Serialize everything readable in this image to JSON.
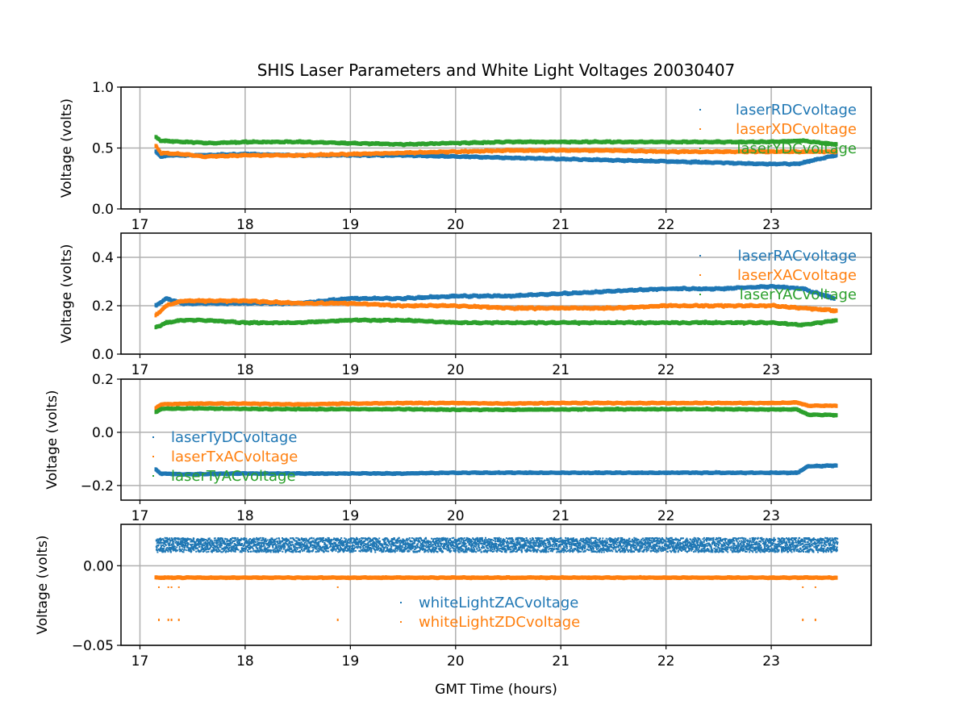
{
  "chart_data": {
    "type": "scatter",
    "title": "SHIS Laser Parameters and White Light Voltages 20030407",
    "xlabel": "GMT Time (hours)",
    "xlim": [
      16.82,
      23.95
    ],
    "x_ticks": [
      17,
      18,
      19,
      20,
      21,
      22,
      23
    ],
    "x_tick_labels": [
      "17",
      "18",
      "19",
      "20",
      "21",
      "22",
      "23"
    ],
    "grid": true,
    "panels": [
      {
        "ylabel": "Voltage (volts)",
        "ylim": [
          0,
          1.0
        ],
        "y_ticks": [
          0,
          0.5,
          1.0
        ],
        "y_tick_labels": [
          "0.0",
          "0.5",
          "1.0"
        ],
        "legend_position": "top-right",
        "series": [
          {
            "name": "laserRDCvoltage",
            "color": "#1f77b4",
            "x": [
              17.15,
              17.2,
              17.3,
              17.5,
              18.0,
              18.5,
              19.0,
              19.5,
              20.0,
              20.5,
              21.0,
              21.5,
              22.0,
              22.5,
              22.9,
              23.25,
              23.45,
              23.62
            ],
            "y": [
              0.47,
              0.43,
              0.44,
              0.44,
              0.45,
              0.44,
              0.44,
              0.44,
              0.43,
              0.42,
              0.41,
              0.4,
              0.39,
              0.38,
              0.37,
              0.37,
              0.41,
              0.44
            ],
            "spread": 0.012
          },
          {
            "name": "laserXDCvoltage",
            "color": "#ff7f0e",
            "x": [
              17.15,
              17.2,
              17.4,
              17.6,
              18.0,
              18.5,
              19.0,
              19.5,
              20.0,
              20.5,
              21.0,
              21.5,
              22.0,
              22.5,
              23.0,
              23.3,
              23.62
            ],
            "y": [
              0.52,
              0.46,
              0.45,
              0.43,
              0.44,
              0.44,
              0.45,
              0.46,
              0.47,
              0.48,
              0.48,
              0.48,
              0.47,
              0.47,
              0.47,
              0.47,
              0.47
            ],
            "spread": 0.012
          },
          {
            "name": "laserYDCvoltage",
            "color": "#2ca02c",
            "x": [
              17.15,
              17.2,
              17.4,
              17.7,
              18.0,
              18.5,
              19.0,
              19.5,
              20.0,
              20.5,
              21.0,
              21.5,
              22.0,
              22.5,
              23.0,
              23.3,
              23.62
            ],
            "y": [
              0.59,
              0.56,
              0.55,
              0.54,
              0.55,
              0.55,
              0.54,
              0.53,
              0.54,
              0.55,
              0.55,
              0.55,
              0.55,
              0.55,
              0.55,
              0.56,
              0.53
            ],
            "spread": 0.012
          }
        ]
      },
      {
        "ylabel": "Voltage (volts)",
        "ylim": [
          0,
          0.5
        ],
        "y_ticks": [
          0,
          0.2,
          0.4
        ],
        "y_tick_labels": [
          "0.0",
          "0.2",
          "0.4"
        ],
        "legend_position": "top-right",
        "series": [
          {
            "name": "laserRACvoltage",
            "color": "#1f77b4",
            "x": [
              17.15,
              17.25,
              17.4,
              17.6,
              18.0,
              18.5,
              19.0,
              19.5,
              20.0,
              20.5,
              21.0,
              21.5,
              22.0,
              22.5,
              23.0,
              23.3,
              23.6
            ],
            "y": [
              0.2,
              0.23,
              0.21,
              0.21,
              0.21,
              0.21,
              0.23,
              0.23,
              0.24,
              0.24,
              0.25,
              0.26,
              0.27,
              0.27,
              0.28,
              0.27,
              0.23
            ],
            "spread": 0.008
          },
          {
            "name": "laserXACvoltage",
            "color": "#ff7f0e",
            "x": [
              17.15,
              17.25,
              17.4,
              17.6,
              18.0,
              18.5,
              19.0,
              19.5,
              20.0,
              20.5,
              21.0,
              21.5,
              22.0,
              22.5,
              23.0,
              23.3,
              23.62
            ],
            "y": [
              0.16,
              0.2,
              0.22,
              0.22,
              0.22,
              0.21,
              0.21,
              0.2,
              0.2,
              0.19,
              0.19,
              0.19,
              0.2,
              0.2,
              0.2,
              0.19,
              0.18
            ],
            "spread": 0.008
          },
          {
            "name": "laserYACvoltage",
            "color": "#2ca02c",
            "x": [
              17.15,
              17.25,
              17.4,
              17.6,
              18.0,
              18.5,
              19.0,
              19.5,
              20.0,
              20.5,
              21.0,
              21.5,
              22.0,
              22.5,
              23.0,
              23.3,
              23.62
            ],
            "y": [
              0.11,
              0.13,
              0.14,
              0.14,
              0.13,
              0.13,
              0.14,
              0.14,
              0.13,
              0.13,
              0.13,
              0.13,
              0.13,
              0.13,
              0.13,
              0.12,
              0.14
            ],
            "spread": 0.007
          }
        ]
      },
      {
        "ylabel": "Voltage (volts)",
        "ylim": [
          -0.255,
          0.2
        ],
        "y_ticks": [
          -0.2,
          0.0,
          0.2
        ],
        "y_tick_labels": [
          "−0.2",
          "0.0",
          "0.2"
        ],
        "legend_position": "center-left",
        "series": [
          {
            "name": "laserTyDCvoltage",
            "color": "#1f77b4",
            "x": [
              17.15,
              17.2,
              17.4,
              18.0,
              18.5,
              19.0,
              19.5,
              20.0,
              20.5,
              21.0,
              21.5,
              22.0,
              22.5,
              23.0,
              23.25,
              23.35,
              23.62
            ],
            "y": [
              -0.14,
              -0.155,
              -0.158,
              -0.155,
              -0.155,
              -0.155,
              -0.155,
              -0.152,
              -0.152,
              -0.152,
              -0.152,
              -0.152,
              -0.152,
              -0.152,
              -0.152,
              -0.128,
              -0.125
            ],
            "spread": 0.004
          },
          {
            "name": "laserTxACvoltage",
            "color": "#ff7f0e",
            "x": [
              17.15,
              17.2,
              17.5,
              18.0,
              18.5,
              19.0,
              19.5,
              20.0,
              20.5,
              21.0,
              21.5,
              22.0,
              22.5,
              23.0,
              23.25,
              23.35,
              23.62
            ],
            "y": [
              0.09,
              0.105,
              0.108,
              0.108,
              0.105,
              0.108,
              0.11,
              0.11,
              0.108,
              0.11,
              0.11,
              0.11,
              0.11,
              0.11,
              0.112,
              0.1,
              0.1
            ],
            "spread": 0.004
          },
          {
            "name": "laserTyACvoltage",
            "color": "#2ca02c",
            "x": [
              17.15,
              17.2,
              17.5,
              18.0,
              18.5,
              19.0,
              19.5,
              20.0,
              20.5,
              21.0,
              21.5,
              22.0,
              22.5,
              23.0,
              23.25,
              23.35,
              23.62
            ],
            "y": [
              0.075,
              0.088,
              0.09,
              0.088,
              0.087,
              0.087,
              0.087,
              0.085,
              0.085,
              0.086,
              0.087,
              0.087,
              0.087,
              0.086,
              0.086,
              0.066,
              0.065
            ],
            "spread": 0.004
          }
        ]
      },
      {
        "ylabel": "Voltage (volts)",
        "ylim": [
          -0.05,
          0.026
        ],
        "y_ticks": [
          -0.05,
          0.0
        ],
        "y_tick_labels": [
          "−0.05",
          "0.00"
        ],
        "legend_position": "lower-center",
        "series": [
          {
            "name": "whiteLightZACvoltage",
            "color": "#1f77b4",
            "x": [
              17.15,
              23.62
            ],
            "y": [
              0.013,
              0.013
            ],
            "spread": 0.0045
          },
          {
            "name": "whiteLightZDCvoltage",
            "color": "#ff7f0e",
            "x": [
              17.15,
              23.62
            ],
            "y": [
              -0.0075,
              -0.0075
            ],
            "spread": 0.0006,
            "outliers_x": [
              17.18,
              17.27,
              17.3,
              17.37,
              18.88,
              23.3,
              23.42
            ],
            "outliers_y": [
              -0.034,
              -0.034,
              -0.034,
              -0.034,
              -0.034,
              -0.034,
              -0.034
            ]
          }
        ]
      }
    ]
  }
}
